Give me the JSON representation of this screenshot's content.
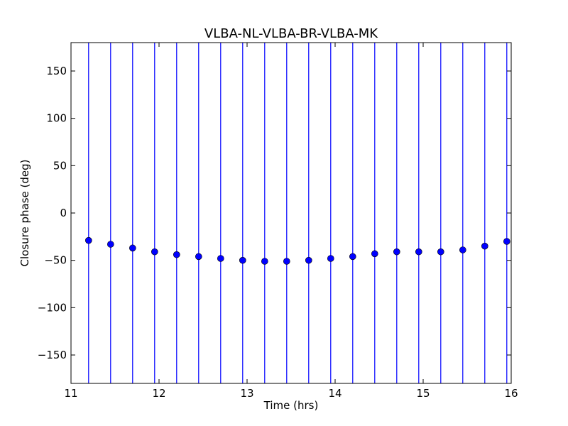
{
  "chart_data": {
    "type": "scatter",
    "title": "VLBA-NL-VLBA-BR-VLBA-MK",
    "xlabel": "Time (hrs)",
    "ylabel": "Closure phase (deg)",
    "xlim": [
      11,
      16
    ],
    "ylim": [
      -180,
      180
    ],
    "x_ticks": [
      11,
      12,
      13,
      14,
      15,
      16
    ],
    "y_ticks": [
      150,
      100,
      50,
      0,
      -50,
      -100,
      -150
    ],
    "x_tick_labels": [
      "11",
      "12",
      "13",
      "14",
      "15",
      "16"
    ],
    "y_tick_labels": [
      "150",
      "100",
      "50",
      "0",
      "−50",
      "−100",
      "−150"
    ],
    "grid": false,
    "marker_color": "#0000ff",
    "errorbar_color": "#0000ff",
    "errorbars": "full-range",
    "series": [
      {
        "x": [
          11.2,
          11.45,
          11.7,
          11.95,
          12.2,
          12.45,
          12.7,
          12.95,
          13.2,
          13.45,
          13.7,
          13.95,
          14.2,
          14.45,
          14.7,
          14.95,
          15.2,
          15.45,
          15.7,
          15.95
        ],
        "y": [
          -29,
          -33,
          -37,
          -41,
          -44,
          -46,
          -48,
          -50,
          -51,
          -51,
          -50,
          -48,
          -46,
          -43,
          -41,
          -41,
          -41,
          -39,
          -35,
          -30
        ]
      }
    ]
  }
}
